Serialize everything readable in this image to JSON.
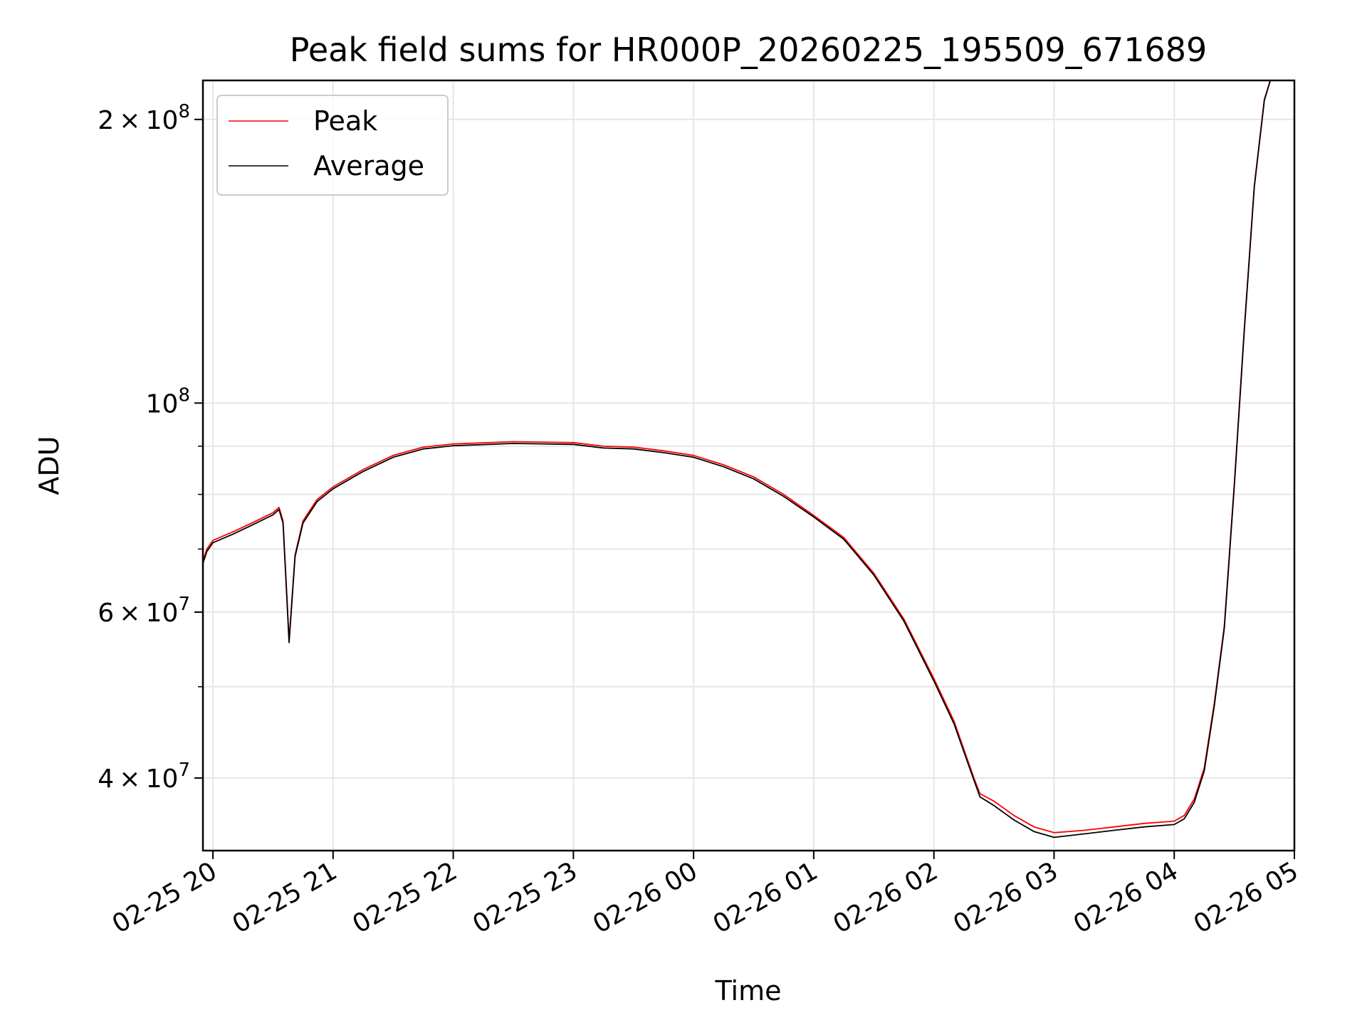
{
  "chart_data": {
    "type": "line",
    "title": "Peak field sums for HR000P_20260225_195509_671689",
    "xlabel": "Time",
    "ylabel": "ADU",
    "yscale": "log",
    "ylim": [
      33500000,
      220000000
    ],
    "xlim": [
      "02-25 19:55",
      "02-26 05:00"
    ],
    "grid": true,
    "legend_position": "top-left",
    "x_ticks": [
      "02-25 20",
      "02-25 21",
      "02-25 22",
      "02-25 23",
      "02-26 00",
      "02-26 01",
      "02-26 02",
      "02-26 03",
      "02-26 04",
      "02-26 05"
    ],
    "y_ticks": [
      {
        "value": 40000000,
        "mantissa": "4",
        "exponent": "7"
      },
      {
        "value": 60000000,
        "mantissa": "6",
        "exponent": "7"
      },
      {
        "value": 100000000,
        "mantissa": "",
        "exponent": "8"
      },
      {
        "value": 200000000,
        "mantissa": "2",
        "exponent": "8"
      }
    ],
    "y_minor_ticks": [
      50000000,
      70000000,
      80000000,
      90000000
    ],
    "series": [
      {
        "name": "Peak",
        "color": "#ff0000",
        "x": [
          "02-25 19:55",
          "02-25 19:57",
          "02-25 20:00",
          "02-25 20:10",
          "02-25 20:20",
          "02-25 20:30",
          "02-25 20:33",
          "02-25 20:35",
          "02-25 20:37",
          "02-25 20:38",
          "02-25 20:39",
          "02-25 20:41",
          "02-25 20:45",
          "02-25 20:52",
          "02-25 21:00",
          "02-25 21:15",
          "02-25 21:30",
          "02-25 21:45",
          "02-25 22:00",
          "02-25 22:30",
          "02-25 23:00",
          "02-25 23:15",
          "02-25 23:30",
          "02-25 23:45",
          "02-26 00:00",
          "02-26 00:15",
          "02-26 00:30",
          "02-26 00:45",
          "02-26 01:00",
          "02-26 01:15",
          "02-26 01:30",
          "02-26 01:45",
          "02-26 02:00",
          "02-26 02:10",
          "02-26 02:20",
          "02-26 02:23",
          "02-26 02:30",
          "02-26 02:40",
          "02-26 02:50",
          "02-26 03:00",
          "02-26 03:15",
          "02-26 03:30",
          "02-26 03:45",
          "02-26 04:00",
          "02-26 04:05",
          "02-26 04:10",
          "02-26 04:15",
          "02-26 04:20",
          "02-26 04:25",
          "02-26 04:30",
          "02-26 04:35",
          "02-26 04:40",
          "02-26 04:45",
          "02-26 04:48"
        ],
        "y": [
          68000000,
          70000000,
          71500000,
          73000000,
          74700000,
          76500000,
          77500000,
          75000000,
          62000000,
          56000000,
          60000000,
          69000000,
          75000000,
          79000000,
          81500000,
          85000000,
          88000000,
          89800000,
          90500000,
          91000000,
          90800000,
          90000000,
          89800000,
          89000000,
          88000000,
          86000000,
          83500000,
          80000000,
          76000000,
          72000000,
          66000000,
          59000000,
          51000000,
          46000000,
          40000000,
          38500000,
          37800000,
          36500000,
          35500000,
          35000000,
          35200000,
          35500000,
          35800000,
          36000000,
          36500000,
          38000000,
          41000000,
          48000000,
          58000000,
          82000000,
          120000000,
          170000000,
          210000000,
          220000000
        ]
      },
      {
        "name": "Average",
        "color": "#000000",
        "x": [
          "02-25 19:55",
          "02-25 19:57",
          "02-25 20:00",
          "02-25 20:10",
          "02-25 20:20",
          "02-25 20:30",
          "02-25 20:33",
          "02-25 20:35",
          "02-25 20:37",
          "02-25 20:38",
          "02-25 20:39",
          "02-25 20:41",
          "02-25 20:45",
          "02-25 20:52",
          "02-25 21:00",
          "02-25 21:15",
          "02-25 21:30",
          "02-25 21:45",
          "02-25 22:00",
          "02-25 22:30",
          "02-25 23:00",
          "02-25 23:15",
          "02-25 23:30",
          "02-25 23:45",
          "02-26 00:00",
          "02-26 00:15",
          "02-26 00:30",
          "02-26 00:45",
          "02-26 01:00",
          "02-26 01:15",
          "02-26 01:30",
          "02-26 01:45",
          "02-26 02:00",
          "02-26 02:10",
          "02-26 02:20",
          "02-26 02:23",
          "02-26 02:30",
          "02-26 02:40",
          "02-26 02:50",
          "02-26 03:00",
          "02-26 03:15",
          "02-26 03:30",
          "02-26 03:45",
          "02-26 04:00",
          "02-26 04:05",
          "02-26 04:10",
          "02-26 04:15",
          "02-26 04:20",
          "02-26 04:25",
          "02-26 04:30",
          "02-26 04:35",
          "02-26 04:40",
          "02-26 04:45",
          "02-26 04:48"
        ],
        "y": [
          67600000,
          69600000,
          71100000,
          72600000,
          74300000,
          76100000,
          77100000,
          74600000,
          61700000,
          55700000,
          59700000,
          68700000,
          74600000,
          78600000,
          81100000,
          84600000,
          87600000,
          89400000,
          90100000,
          90600000,
          90400000,
          89600000,
          89400000,
          88600000,
          87600000,
          85600000,
          83100000,
          79600000,
          75700000,
          71700000,
          65700000,
          58700000,
          50700000,
          45700000,
          39800000,
          38200000,
          37400000,
          36100000,
          35100000,
          34600000,
          34900000,
          35200000,
          35500000,
          35700000,
          36200000,
          37700000,
          40700000,
          47700000,
          57700000,
          81600000,
          119500000,
          169500000,
          209500000,
          220000000
        ]
      }
    ]
  }
}
